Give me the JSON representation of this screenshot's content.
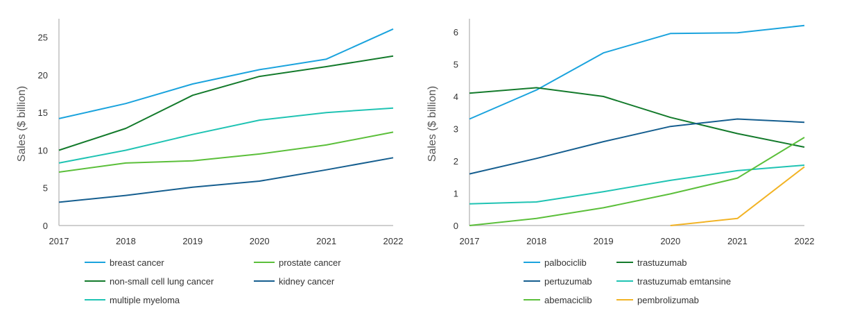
{
  "colors": {
    "breast": "#1aa3dd",
    "prostate": "#5bbf3a",
    "nsclc": "#137a2b",
    "kidney": "#155e8f",
    "myeloma": "#1fc3b3",
    "pembrolizumab": "#f2b324"
  },
  "chart_data": [
    {
      "type": "line",
      "ylabel": "Sales ($ billion)",
      "x": [
        "2017",
        "2018",
        "2019",
        "2020",
        "2021",
        "2022"
      ],
      "ylim": [
        0,
        27
      ],
      "yticks": [
        "0",
        "5",
        "10",
        "15",
        "20",
        "25"
      ],
      "grid": false,
      "legend_position": "bottom",
      "series": [
        {
          "name": "breast cancer",
          "color": "#1aa3dd",
          "values": [
            14.2,
            16.2,
            18.8,
            20.7,
            22.1,
            26.1
          ]
        },
        {
          "name": "prostate cancer",
          "color": "#5bbf3a",
          "values": [
            7.1,
            8.3,
            8.6,
            9.5,
            10.7,
            12.4
          ]
        },
        {
          "name": "non-small cell lung cancer",
          "color": "#137a2b",
          "values": [
            10.0,
            12.9,
            17.3,
            19.8,
            21.1,
            22.5
          ]
        },
        {
          "name": "kidney cancer",
          "color": "#155e8f",
          "values": [
            3.1,
            4.0,
            5.1,
            5.9,
            7.4,
            9.0
          ]
        },
        {
          "name": "multiple myeloma",
          "color": "#1fc3b3",
          "values": [
            8.3,
            10.0,
            12.1,
            14.0,
            15.0,
            15.6
          ]
        }
      ]
    },
    {
      "type": "line",
      "ylabel": "Sales ($ billion)",
      "x": [
        "2017",
        "2018",
        "2019",
        "2020",
        "2021",
        "2022"
      ],
      "ylim": [
        0,
        6.3
      ],
      "yticks": [
        "0",
        "1",
        "2",
        "3",
        "4",
        "5",
        "6"
      ],
      "grid": false,
      "legend_position": "bottom",
      "series": [
        {
          "name": "palbociclib",
          "color": "#1aa3dd",
          "values": [
            3.3,
            4.2,
            5.35,
            5.95,
            5.97,
            6.2
          ]
        },
        {
          "name": "trastuzumab",
          "color": "#137a2b",
          "values": [
            4.1,
            4.27,
            4.0,
            3.35,
            2.85,
            2.43
          ]
        },
        {
          "name": "pertuzumab",
          "color": "#155e8f",
          "values": [
            1.6,
            2.08,
            2.6,
            3.07,
            3.3,
            3.2
          ]
        },
        {
          "name": "trastuzumab emtansine",
          "color": "#1fc3b3",
          "values": [
            0.67,
            0.73,
            1.05,
            1.4,
            1.7,
            1.87
          ]
        },
        {
          "name": "abemaciclib",
          "color": "#5bbf3a",
          "values": [
            0.0,
            0.22,
            0.55,
            0.98,
            1.47,
            2.73
          ]
        },
        {
          "name": "pembrolizumab",
          "color": "#f2b324",
          "values": [
            null,
            null,
            null,
            0.0,
            0.22,
            1.82
          ]
        }
      ]
    }
  ]
}
